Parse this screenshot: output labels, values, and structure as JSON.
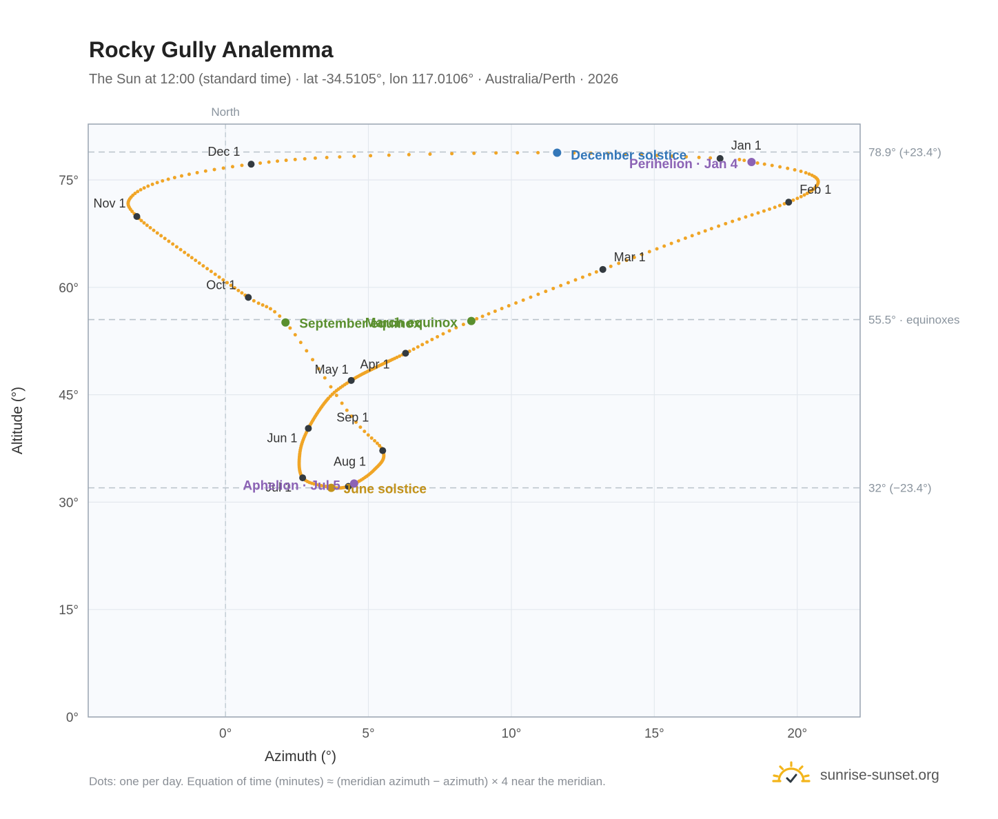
{
  "header": {
    "title": "Rocky Gully Analemma",
    "subtitle": "The Sun at 12:00 (standard time) · lat -34.5105°, lon 117.0106° · Australia/Perth · 2026"
  },
  "footer": {
    "note": "Dots: one per day. Equation of time (minutes) ≈ (meridian azimuth − azimuth) × 4 near the meridian.",
    "brand": "sunrise-sunset.org",
    "brand_icon": "sun-check-icon"
  },
  "colors": {
    "path": "#f0a526",
    "month_dot": "#333a40",
    "equinox": "#5a8f2e",
    "december_solstice": "#3477b8",
    "june_solstice": "#c2921a",
    "apsis": "#8c63b5",
    "ref_line": "#b9c2cb",
    "plot_bg": "#f8fafd",
    "axis": "#98a3b0"
  },
  "chart_data": {
    "type": "scatter",
    "xlabel": "Azimuth (°)",
    "ylabel": "Altitude (°)",
    "xlim": [
      -4.8,
      22.2
    ],
    "ylim": [
      0,
      82.8
    ],
    "xticks": [
      0,
      5,
      10,
      15,
      20
    ],
    "xtick_labels": [
      "0°",
      "5°",
      "10°",
      "15°",
      "20°"
    ],
    "yticks": [
      0,
      15,
      30,
      45,
      60,
      75
    ],
    "ytick_labels": [
      "0°",
      "15°",
      "30°",
      "45°",
      "60°",
      "75°"
    ],
    "grid": true,
    "north_line": {
      "x": 0,
      "label": "North"
    },
    "reference_lines": [
      {
        "y": 78.9,
        "label": "78.9° (+23.4°)"
      },
      {
        "y": 55.5,
        "label": "55.5° · equinoxes"
      },
      {
        "y": 32.0,
        "label": "32° (−23.4°)"
      }
    ],
    "month_markers": [
      {
        "label": "Jan 1",
        "x": 17.3,
        "y": 78.0
      },
      {
        "label": "Feb 1",
        "x": 19.7,
        "y": 71.9
      },
      {
        "label": "Mar 1",
        "x": 13.2,
        "y": 62.5
      },
      {
        "label": "Apr 1",
        "x": 6.3,
        "y": 50.8
      },
      {
        "label": "May 1",
        "x": 4.4,
        "y": 47.0
      },
      {
        "label": "Jun 1",
        "x": 2.9,
        "y": 40.3
      },
      {
        "label": "Jul 1",
        "x": 2.7,
        "y": 33.4
      },
      {
        "label": "Aug 1",
        "x": 4.3,
        "y": 32.2
      },
      {
        "label": "Sep 1",
        "x": 5.5,
        "y": 37.2
      },
      {
        "label": "Oct 1",
        "x": 0.8,
        "y": 58.6
      },
      {
        "label": "Nov 1",
        "x": -3.1,
        "y": 69.9
      },
      {
        "label": "Dec 1",
        "x": 0.9,
        "y": 77.2
      }
    ],
    "events": [
      {
        "label": "December solstice",
        "x": 11.6,
        "y": 78.8,
        "kind": "december_solstice"
      },
      {
        "label": "Perihelion · Jan 4",
        "x": 18.4,
        "y": 77.5,
        "kind": "apsis"
      },
      {
        "label": "March equinox",
        "x": 8.6,
        "y": 55.3,
        "kind": "equinox"
      },
      {
        "label": "September equinox",
        "x": 2.1,
        "y": 55.1,
        "kind": "equinox"
      },
      {
        "label": "June solstice",
        "x": 3.7,
        "y": 32.0,
        "kind": "june_solstice"
      },
      {
        "label": "Aphelion · Jul 5",
        "x": 4.5,
        "y": 32.6,
        "kind": "apsis"
      }
    ],
    "path_keypoints": [
      {
        "day": 1,
        "x": 17.3,
        "y": 78.0
      },
      {
        "day": 4,
        "x": 18.4,
        "y": 77.5
      },
      {
        "day": 12,
        "x": 20.3,
        "y": 76.0
      },
      {
        "day": 21,
        "x": 20.7,
        "y": 74.3
      },
      {
        "day": 32,
        "x": 19.7,
        "y": 71.9
      },
      {
        "day": 45,
        "x": 17.0,
        "y": 68.2
      },
      {
        "day": 60,
        "x": 13.2,
        "y": 62.5
      },
      {
        "day": 79,
        "x": 8.6,
        "y": 55.3
      },
      {
        "day": 91,
        "x": 6.3,
        "y": 50.8
      },
      {
        "day": 105,
        "x": 5.3,
        "y": 48.9
      },
      {
        "day": 121,
        "x": 4.4,
        "y": 47.0
      },
      {
        "day": 132,
        "x": 3.6,
        "y": 44.5
      },
      {
        "day": 152,
        "x": 2.9,
        "y": 40.3
      },
      {
        "day": 165,
        "x": 2.6,
        "y": 36.8
      },
      {
        "day": 182,
        "x": 2.7,
        "y": 33.4
      },
      {
        "day": 193,
        "x": 3.5,
        "y": 32.2
      },
      {
        "day": 213,
        "x": 4.3,
        "y": 32.2
      },
      {
        "day": 228,
        "x": 5.2,
        "y": 34.5
      },
      {
        "day": 244,
        "x": 5.5,
        "y": 37.2
      },
      {
        "day": 254,
        "x": 4.4,
        "y": 42.0
      },
      {
        "day": 266,
        "x": 2.1,
        "y": 55.1
      },
      {
        "day": 274,
        "x": 0.8,
        "y": 58.6
      },
      {
        "day": 290,
        "x": -1.3,
        "y": 64.5
      },
      {
        "day": 305,
        "x": -3.1,
        "y": 69.9
      },
      {
        "day": 315,
        "x": -3.3,
        "y": 72.6
      },
      {
        "day": 325,
        "x": -2.0,
        "y": 75.1
      },
      {
        "day": 335,
        "x": 0.9,
        "y": 77.2
      },
      {
        "day": 345,
        "x": 4.5,
        "y": 78.3
      },
      {
        "day": 355,
        "x": 11.6,
        "y": 78.8
      },
      {
        "day": 366,
        "x": 17.3,
        "y": 78.0
      }
    ]
  }
}
